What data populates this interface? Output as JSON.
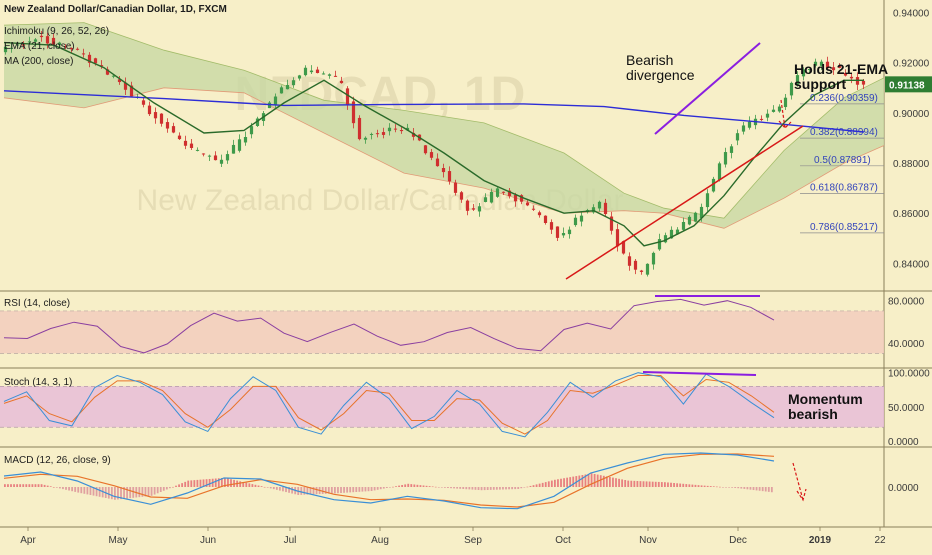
{
  "colors": {
    "background": "#f7efc8",
    "candle_up": "#3f9a4a",
    "candle_down": "#cf2f2f",
    "ema": "#2a6a2a",
    "ma200": "#2d2dd6",
    "cloud_bull": "#c8d8a4",
    "cloud_bear": "#f2bc9a",
    "trend": "#d81818",
    "divergence": "#8a1ee0",
    "rsi": "#8a3fa0",
    "rsi_band": "#f2cdbd",
    "stoch_band": "#e8bdd8",
    "stoch_k": "#3a8fd6",
    "stoch_d": "#e8732a",
    "macd_line": "#3a8fd6",
    "signal_line": "#e8732a",
    "price_tag": "#2f7d32"
  },
  "legend": {
    "title": "New Zealand Dollar/Canadian Dollar, 1D, FXCM",
    "ichimoku": "Ichimoku (9, 26, 52, 26)",
    "ema": "EMA (21, close)",
    "ma": "MA (200, close)"
  },
  "annotations": {
    "bearish": "Bearish\ndivergence",
    "holds": "Holds 21-EMA\nsupport",
    "momentum": "Momentum\nbearish"
  },
  "price_tag": "0.91138",
  "watermark": "NZDCAD, 1D\nNew Zealand Dollar/Canadian Dollar",
  "fib_levels": [
    {
      "label": "0.236(0.90359)",
      "value": 0.90359
    },
    {
      "label": "0.382(0.88994)",
      "value": 0.88994
    },
    {
      "label": "0.5(0.87891)",
      "value": 0.87891
    },
    {
      "label": "0.618(0.86787)",
      "value": 0.86787
    },
    {
      "label": "0.786(0.85217)",
      "value": 0.85217
    }
  ],
  "panels": {
    "rsi_label": "RSI (14, close)",
    "stoch_label": "Stoch (14, 3, 1)",
    "macd_label": "MACD (12, 26, close, 9)"
  },
  "chart_data": {
    "type": "candlestick",
    "symbol": "NZDCAD",
    "timeframe": "1D",
    "x_labels": [
      "Apr",
      "May",
      "Jun",
      "Jul",
      "Aug",
      "Sep",
      "Oct",
      "Nov",
      "Dec",
      "2019",
      "22"
    ],
    "y_axis": {
      "ticks": [
        "0.94000",
        "0.92000",
        "0.90000",
        "0.88000",
        "0.86000",
        "0.84000"
      ],
      "range": [
        0.829,
        0.945
      ]
    },
    "price_path": [
      [
        0,
        0.925
      ],
      [
        20,
        0.93
      ],
      [
        40,
        0.924
      ],
      [
        60,
        0.912
      ],
      [
        80,
        0.897
      ],
      [
        95,
        0.886
      ],
      [
        110,
        0.88
      ],
      [
        125,
        0.893
      ],
      [
        140,
        0.91
      ],
      [
        155,
        0.918
      ],
      [
        170,
        0.913
      ],
      [
        180,
        0.89
      ],
      [
        195,
        0.893
      ],
      [
        205,
        0.893
      ],
      [
        220,
        0.878
      ],
      [
        235,
        0.86
      ],
      [
        250,
        0.87
      ],
      [
        260,
        0.865
      ],
      [
        272,
        0.858
      ],
      [
        280,
        0.85
      ],
      [
        290,
        0.859
      ],
      [
        300,
        0.864
      ],
      [
        310,
        0.846
      ],
      [
        320,
        0.834
      ],
      [
        330,
        0.849
      ],
      [
        340,
        0.855
      ],
      [
        350,
        0.86
      ],
      [
        360,
        0.88
      ],
      [
        370,
        0.893
      ],
      [
        380,
        0.898
      ],
      [
        390,
        0.903
      ],
      [
        400,
        0.916
      ],
      [
        410,
        0.92
      ],
      [
        420,
        0.917
      ],
      [
        430,
        0.911
      ]
    ],
    "ema_path": [
      [
        0,
        0.928
      ],
      [
        25,
        0.927
      ],
      [
        50,
        0.918
      ],
      [
        75,
        0.904
      ],
      [
        100,
        0.892
      ],
      [
        120,
        0.893
      ],
      [
        140,
        0.904
      ],
      [
        160,
        0.913
      ],
      [
        180,
        0.903
      ],
      [
        200,
        0.894
      ],
      [
        220,
        0.884
      ],
      [
        240,
        0.873
      ],
      [
        260,
        0.866
      ],
      [
        280,
        0.86
      ],
      [
        295,
        0.861
      ],
      [
        310,
        0.855
      ],
      [
        320,
        0.847
      ],
      [
        330,
        0.849
      ],
      [
        345,
        0.855
      ],
      [
        360,
        0.867
      ],
      [
        375,
        0.882
      ],
      [
        390,
        0.896
      ],
      [
        405,
        0.907
      ],
      [
        420,
        0.913
      ],
      [
        430,
        0.913
      ]
    ],
    "ma200_path": [
      [
        0,
        0.9088
      ],
      [
        80,
        0.9057
      ],
      [
        140,
        0.903
      ],
      [
        200,
        0.9034
      ],
      [
        260,
        0.9036
      ],
      [
        300,
        0.9025
      ],
      [
        340,
        0.899
      ],
      [
        380,
        0.8962
      ],
      [
        430,
        0.8924
      ]
    ],
    "cloud_upper": [
      [
        0,
        0.935
      ],
      [
        40,
        0.936
      ],
      [
        80,
        0.925
      ],
      [
        120,
        0.917
      ],
      [
        160,
        0.905
      ],
      [
        200,
        0.901
      ],
      [
        240,
        0.896
      ],
      [
        280,
        0.884
      ],
      [
        310,
        0.868
      ],
      [
        330,
        0.862
      ],
      [
        360,
        0.858
      ],
      [
        390,
        0.885
      ],
      [
        420,
        0.906
      ],
      [
        440,
        0.914
      ]
    ],
    "cloud_lower": [
      [
        0,
        0.906
      ],
      [
        40,
        0.902
      ],
      [
        80,
        0.91
      ],
      [
        120,
        0.908
      ],
      [
        160,
        0.892
      ],
      [
        200,
        0.876
      ],
      [
        240,
        0.87
      ],
      [
        280,
        0.86
      ],
      [
        310,
        0.861
      ],
      [
        330,
        0.86
      ],
      [
        360,
        0.854
      ],
      [
        390,
        0.866
      ],
      [
        420,
        0.88
      ],
      [
        440,
        0.887
      ]
    ],
    "rsi": {
      "ticks": [
        "80.0000",
        "40.0000"
      ],
      "range": [
        20,
        85
      ],
      "values": [
        46,
        44,
        52,
        58,
        54,
        38,
        30,
        37,
        57,
        66,
        60,
        62,
        48,
        42,
        50,
        56,
        46,
        36,
        40,
        50,
        55,
        44,
        36,
        33,
        54,
        60,
        54,
        74,
        78,
        80,
        77,
        80,
        72,
        61
      ]
    },
    "stochastic": {
      "ticks": [
        "100.0000",
        "50.0000",
        "0.0000"
      ],
      "range": [
        -6,
        104
      ],
      "k": [
        58,
        72,
        30,
        22,
        78,
        96,
        86,
        68,
        28,
        14,
        62,
        94,
        74,
        20,
        10,
        52,
        86,
        62,
        18,
        36,
        74,
        54,
        14,
        6,
        42,
        86,
        64,
        88,
        100,
        94,
        54,
        98,
        80,
        56,
        34
      ],
      "d": [
        55,
        66,
        40,
        28,
        64,
        88,
        88,
        74,
        40,
        20,
        46,
        80,
        80,
        34,
        16,
        40,
        74,
        70,
        30,
        30,
        62,
        60,
        26,
        10,
        30,
        74,
        70,
        82,
        96,
        96,
        66,
        90,
        86,
        66,
        42
      ]
    },
    "macd": {
      "ticks": [
        "0.0000"
      ],
      "range": [
        -0.012,
        0.012
      ],
      "macd": [
        0.0033,
        0.0045,
        0.0018,
        -0.0028,
        -0.0052,
        -0.0018,
        0.0027,
        0.0024,
        -0.0012,
        -0.0038,
        -0.0048,
        -0.0028,
        -0.0042,
        -0.0062,
        -0.0065,
        -0.0028,
        0.0042,
        0.0072,
        0.0098,
        0.0102,
        0.0096,
        0.0078
      ],
      "signal": [
        0.0026,
        0.0038,
        0.0032,
        0.0004,
        -0.003,
        -0.0034,
        0.0004,
        0.0022,
        0.0008,
        -0.0022,
        -0.0038,
        -0.0036,
        -0.004,
        -0.0054,
        -0.006,
        -0.0046,
        0.0008,
        0.0056,
        0.0086,
        0.0098,
        0.0099,
        0.0092
      ]
    }
  }
}
